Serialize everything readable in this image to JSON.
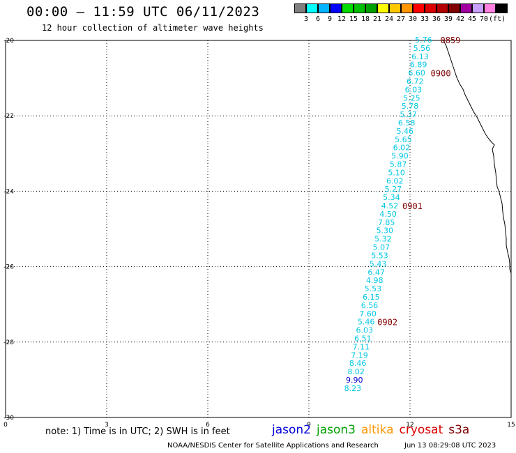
{
  "header": {
    "title": "00:00 – 11:59 UTC 06/11/2023",
    "subtitle": "12 hour collection of altimeter wave heights"
  },
  "color_scale": {
    "colors": [
      "#808080",
      "#00ffff",
      "#00b4ff",
      "#0000ff",
      "#00dc00",
      "#00c000",
      "#00a000",
      "#ffff00",
      "#ffc800",
      "#ff9600",
      "#ff0000",
      "#dc0000",
      "#b40000",
      "#800000",
      "#a000a0",
      "#c8a0ff",
      "#ff80e0",
      "#000000"
    ],
    "labels": [
      "3",
      "6",
      "9",
      "12",
      "15",
      "18",
      "21",
      "24",
      "27",
      "30",
      "33",
      "36",
      "39",
      "42",
      "45",
      "70",
      "(ft)"
    ]
  },
  "axes": {
    "x_labels": [
      "0",
      "3",
      "6",
      "9",
      "12",
      "15"
    ],
    "y_labels": [
      "-20",
      "-22",
      "-24",
      "-26",
      "-28",
      "-30"
    ]
  },
  "track": {
    "color": "#00c8e6",
    "points": [
      {
        "value": "5.76",
        "lon": 12.4,
        "lat": -20.0
      },
      {
        "value": "5.56",
        "lon": 12.35,
        "lat": -20.22
      },
      {
        "value": "6.13",
        "lon": 12.3,
        "lat": -20.44
      },
      {
        "value": "6.89",
        "lon": 12.25,
        "lat": -20.66
      },
      {
        "value": "6.60",
        "lon": 12.2,
        "lat": -20.88
      },
      {
        "value": "6.72",
        "lon": 12.15,
        "lat": -21.1
      },
      {
        "value": "6.03",
        "lon": 12.1,
        "lat": -21.32
      },
      {
        "value": "5.25",
        "lon": 12.05,
        "lat": -21.54
      },
      {
        "value": "5.78",
        "lon": 12.0,
        "lat": -21.76
      },
      {
        "value": "5.37",
        "lon": 11.95,
        "lat": -21.98
      },
      {
        "value": "6.58",
        "lon": 11.9,
        "lat": -22.2
      },
      {
        "value": "5.46",
        "lon": 11.85,
        "lat": -22.42
      },
      {
        "value": "5.65",
        "lon": 11.8,
        "lat": -22.64
      },
      {
        "value": "6.02",
        "lon": 11.75,
        "lat": -22.86
      },
      {
        "value": "5.90",
        "lon": 11.7,
        "lat": -23.08
      },
      {
        "value": "5.87",
        "lon": 11.65,
        "lat": -23.3
      },
      {
        "value": "5.10",
        "lon": 11.6,
        "lat": -23.52
      },
      {
        "value": "6.02",
        "lon": 11.55,
        "lat": -23.74
      },
      {
        "value": "5.27",
        "lon": 11.5,
        "lat": -23.96
      },
      {
        "value": "5.34",
        "lon": 11.45,
        "lat": -24.18
      },
      {
        "value": "4.52",
        "lon": 11.4,
        "lat": -24.4
      },
      {
        "value": "4.50",
        "lon": 11.35,
        "lat": -24.62
      },
      {
        "value": "7.85",
        "lon": 11.3,
        "lat": -24.84
      },
      {
        "value": "5.30",
        "lon": 11.25,
        "lat": -25.06
      },
      {
        "value": "5.32",
        "lon": 11.2,
        "lat": -25.28
      },
      {
        "value": "5.07",
        "lon": 11.15,
        "lat": -25.5
      },
      {
        "value": "5.53",
        "lon": 11.1,
        "lat": -25.72
      },
      {
        "value": "5.43",
        "lon": 11.05,
        "lat": -25.94
      },
      {
        "value": "6.47",
        "lon": 11.0,
        "lat": -26.16
      },
      {
        "value": "4.98",
        "lon": 10.95,
        "lat": -26.38
      },
      {
        "value": "5.53",
        "lon": 10.9,
        "lat": -26.6
      },
      {
        "value": "6.15",
        "lon": 10.85,
        "lat": -26.82
      },
      {
        "value": "6.56",
        "lon": 10.8,
        "lat": -27.04
      },
      {
        "value": "7.60",
        "lon": 10.75,
        "lat": -27.26
      },
      {
        "value": "5.46",
        "lon": 10.7,
        "lat": -27.48
      },
      {
        "value": "6.03",
        "lon": 10.65,
        "lat": -27.7
      },
      {
        "value": "6.51",
        "lon": 10.6,
        "lat": -27.92
      },
      {
        "value": "7.11",
        "lon": 10.55,
        "lat": -28.14
      },
      {
        "value": "7.19",
        "lon": 10.5,
        "lat": -28.36
      },
      {
        "value": "8.46",
        "lon": 10.45,
        "lat": -28.58
      },
      {
        "value": "8.02",
        "lon": 10.4,
        "lat": -28.8
      },
      {
        "value": "9.90",
        "lon": 10.35,
        "lat": -29.02
      },
      {
        "value": "8.23",
        "lon": 10.3,
        "lat": -29.24
      }
    ]
  },
  "time_labels": [
    "0859",
    "0900",
    "0901",
    "0902"
  ],
  "note": "note:  1) Time is in UTC;  2) SWH is in feet",
  "satellites": [
    {
      "name": "jason2",
      "color": "#0000dc"
    },
    {
      "name": "jason3",
      "color": "#00a000"
    },
    {
      "name": "altika",
      "color": "#ff9600"
    },
    {
      "name": "cryosat",
      "color": "#dc0000"
    },
    {
      "name": "s3a",
      "color": "#800000"
    }
  ],
  "footer": {
    "credit": "NOAA/NESDIS Center for Satellite Applications and Research",
    "timestamp": "Jun 13 08:29:08 UTC 2023"
  }
}
